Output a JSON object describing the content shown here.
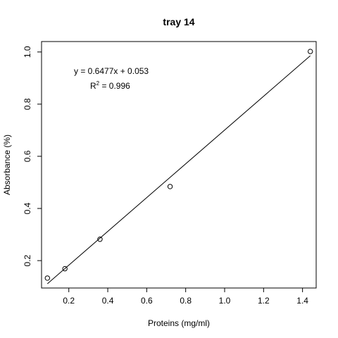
{
  "chart_data": {
    "type": "scatter",
    "title": "tray 14",
    "xlabel": "Proteins (mg/ml)",
    "ylabel": "Absorbance (%)",
    "xlim": [
      0.06,
      1.47
    ],
    "ylim": [
      0.095,
      1.04
    ],
    "xticks": [
      0.2,
      0.4,
      0.6,
      0.8,
      1.0,
      1.2,
      1.4
    ],
    "xtick_labels": [
      "0.2",
      "0.4",
      "0.6",
      "0.8",
      "1.0",
      "1.2",
      "1.4"
    ],
    "yticks": [
      0.2,
      0.4,
      0.6,
      0.8,
      1.0
    ],
    "ytick_labels": [
      "0.2",
      "0.4",
      "0.6",
      "0.8",
      "1.0"
    ],
    "points": [
      {
        "x": 0.09,
        "y": 0.133
      },
      {
        "x": 0.18,
        "y": 0.169
      },
      {
        "x": 0.36,
        "y": 0.282
      },
      {
        "x": 0.72,
        "y": 0.484
      },
      {
        "x": 1.44,
        "y": 1.002
      }
    ],
    "fit": {
      "slope": 0.6477,
      "intercept": 0.053,
      "x_range": [
        0.09,
        1.44
      ],
      "equation": "y = 0.6477x + 0.053",
      "r2_label": "R",
      "r2_superscript": "2",
      "r2_value": " = 0.996"
    },
    "grid": false,
    "legend": "none"
  }
}
